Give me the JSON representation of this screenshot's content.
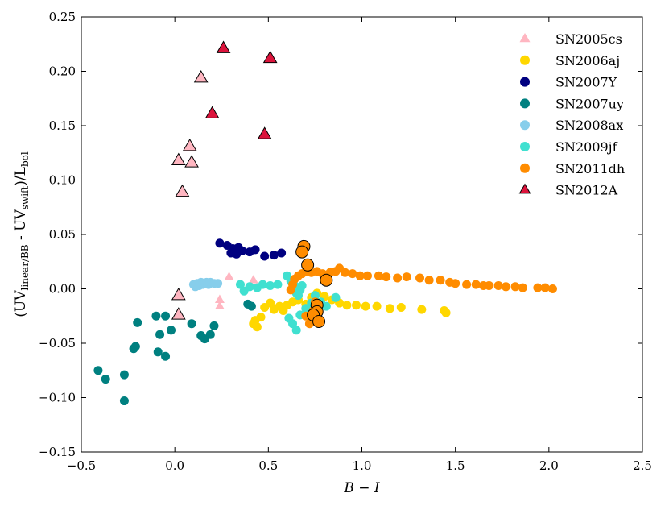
{
  "chart_data": {
    "type": "scatter",
    "title": "",
    "xlabel": "B − I",
    "ylabel": "(UV_linear/BB - UV_swift)/L_bol",
    "ylabel_parts": {
      "open": "(UV",
      "sub1": "linear/BB",
      "mid": " - UV",
      "sub2": "swift",
      "close": ")/L",
      "sub3": "bol"
    },
    "xlim": [
      -0.5,
      2.5
    ],
    "ylim": [
      -0.15,
      0.25
    ],
    "xticks": [
      -0.5,
      0.0,
      0.5,
      1.0,
      1.5,
      2.0,
      2.5
    ],
    "xtick_labels": [
      "−0.5",
      "0.0",
      "0.5",
      "1.0",
      "1.5",
      "2.0",
      "2.5"
    ],
    "yticks": [
      -0.15,
      -0.1,
      -0.05,
      0.0,
      0.05,
      0.1,
      0.15,
      0.2,
      0.25
    ],
    "ytick_labels": [
      "−0.15",
      "−0.10",
      "−0.05",
      "0.00",
      "0.05",
      "0.10",
      "0.15",
      "0.20",
      "0.25"
    ],
    "grid": false,
    "legend_position": "top-right",
    "series": [
      {
        "name": "SN2005cs",
        "marker": "triangle",
        "color": "#ffb6c1",
        "points": [
          [
            0.02,
            0.118
          ],
          [
            0.08,
            0.131
          ],
          [
            0.14,
            0.194
          ],
          [
            0.09,
            0.116
          ],
          [
            0.04,
            0.089
          ],
          [
            0.02,
            -0.006
          ],
          [
            0.02,
            -0.024
          ],
          [
            0.24,
            -0.01
          ],
          [
            0.24,
            -0.016
          ],
          [
            0.29,
            0.011
          ],
          [
            0.42,
            0.008
          ]
        ],
        "large_points": [
          [
            0.02,
            0.118
          ],
          [
            0.08,
            0.131
          ],
          [
            0.14,
            0.194
          ],
          [
            0.09,
            0.116
          ],
          [
            0.04,
            0.089
          ],
          [
            0.02,
            -0.006
          ],
          [
            0.02,
            -0.024
          ]
        ]
      },
      {
        "name": "SN2006aj",
        "marker": "circle",
        "color": "#ffd700",
        "points": [
          [
            0.42,
            -0.032
          ],
          [
            0.43,
            -0.029
          ],
          [
            0.44,
            -0.035
          ],
          [
            0.46,
            -0.026
          ],
          [
            0.48,
            -0.017
          ],
          [
            0.51,
            -0.013
          ],
          [
            0.53,
            -0.019
          ],
          [
            0.56,
            -0.016
          ],
          [
            0.58,
            -0.02
          ],
          [
            0.6,
            -0.015
          ],
          [
            0.63,
            -0.012
          ],
          [
            0.66,
            -0.01
          ],
          [
            0.7,
            -0.014
          ],
          [
            0.73,
            -0.008
          ],
          [
            0.76,
            -0.004
          ],
          [
            0.8,
            -0.007
          ],
          [
            0.84,
            -0.01
          ],
          [
            0.88,
            -0.013
          ],
          [
            0.92,
            -0.015
          ],
          [
            0.97,
            -0.015
          ],
          [
            1.02,
            -0.016
          ],
          [
            1.08,
            -0.016
          ],
          [
            1.15,
            -0.018
          ],
          [
            1.21,
            -0.017
          ],
          [
            1.32,
            -0.019
          ],
          [
            1.44,
            -0.02
          ],
          [
            1.45,
            -0.022
          ]
        ]
      },
      {
        "name": "SN2007Y",
        "marker": "circle",
        "color": "#000080",
        "points": [
          [
            0.24,
            0.042
          ],
          [
            0.28,
            0.04
          ],
          [
            0.31,
            0.037
          ],
          [
            0.34,
            0.038
          ],
          [
            0.36,
            0.035
          ],
          [
            0.3,
            0.033
          ],
          [
            0.33,
            0.032
          ],
          [
            0.4,
            0.034
          ],
          [
            0.43,
            0.036
          ],
          [
            0.48,
            0.03
          ],
          [
            0.53,
            0.031
          ],
          [
            0.57,
            0.033
          ]
        ]
      },
      {
        "name": "SN2007uy",
        "marker": "circle",
        "color": "#008080",
        "points": [
          [
            -0.41,
            -0.075
          ],
          [
            -0.37,
            -0.083
          ],
          [
            -0.27,
            -0.079
          ],
          [
            -0.27,
            -0.103
          ],
          [
            -0.2,
            -0.031
          ],
          [
            -0.21,
            -0.053
          ],
          [
            -0.22,
            -0.055
          ],
          [
            -0.1,
            -0.025
          ],
          [
            -0.08,
            -0.042
          ],
          [
            -0.05,
            -0.025
          ],
          [
            -0.02,
            -0.038
          ],
          [
            -0.09,
            -0.058
          ],
          [
            -0.05,
            -0.062
          ],
          [
            0.09,
            -0.032
          ],
          [
            0.14,
            -0.043
          ],
          [
            0.16,
            -0.046
          ],
          [
            0.19,
            -0.042
          ],
          [
            0.21,
            -0.034
          ],
          [
            0.39,
            -0.014
          ],
          [
            0.41,
            -0.016
          ]
        ]
      },
      {
        "name": "SN2008ax",
        "marker": "circle",
        "color": "#87ceeb",
        "points": [
          [
            0.1,
            0.004
          ],
          [
            0.11,
            0.002
          ],
          [
            0.12,
            0.005
          ],
          [
            0.13,
            0.003
          ],
          [
            0.14,
            0.006
          ],
          [
            0.15,
            0.004
          ],
          [
            0.16,
            0.005
          ],
          [
            0.17,
            0.006
          ],
          [
            0.18,
            0.004
          ],
          [
            0.19,
            0.006
          ],
          [
            0.21,
            0.005
          ],
          [
            0.23,
            0.005
          ]
        ]
      },
      {
        "name": "SN2009jf",
        "marker": "circle",
        "color": "#40e0d0",
        "points": [
          [
            0.35,
            0.004
          ],
          [
            0.37,
            -0.002
          ],
          [
            0.4,
            0.002
          ],
          [
            0.44,
            0.001
          ],
          [
            0.47,
            0.004
          ],
          [
            0.51,
            0.003
          ],
          [
            0.55,
            0.004
          ],
          [
            0.6,
            0.012
          ],
          [
            0.62,
            0.007
          ],
          [
            0.64,
            0.003
          ],
          [
            0.65,
            -0.004
          ],
          [
            0.66,
            -0.006
          ],
          [
            0.67,
            -0.001
          ],
          [
            0.68,
            0.003
          ],
          [
            0.61,
            -0.027
          ],
          [
            0.63,
            -0.032
          ],
          [
            0.65,
            -0.038
          ],
          [
            0.67,
            -0.024
          ],
          [
            0.7,
            -0.018
          ],
          [
            0.73,
            -0.013
          ],
          [
            0.75,
            -0.006
          ],
          [
            0.78,
            -0.012
          ],
          [
            0.81,
            -0.016
          ],
          [
            0.86,
            -0.008
          ]
        ]
      },
      {
        "name": "SN2011dh",
        "marker": "circle",
        "color": "#ff8c00",
        "points": [
          [
            0.62,
            -0.001
          ],
          [
            0.63,
            0.004
          ],
          [
            0.64,
            0.009
          ],
          [
            0.66,
            0.012
          ],
          [
            0.68,
            0.014
          ],
          [
            0.7,
            0.016
          ],
          [
            0.73,
            0.015
          ],
          [
            0.76,
            0.016
          ],
          [
            0.79,
            0.014
          ],
          [
            0.83,
            0.015
          ],
          [
            0.86,
            0.016
          ],
          [
            0.88,
            0.019
          ],
          [
            0.91,
            0.015
          ],
          [
            0.95,
            0.014
          ],
          [
            0.99,
            0.012
          ],
          [
            1.03,
            0.012
          ],
          [
            1.09,
            0.012
          ],
          [
            1.13,
            0.011
          ],
          [
            1.19,
            0.01
          ],
          [
            1.24,
            0.011
          ],
          [
            1.31,
            0.01
          ],
          [
            1.36,
            0.008
          ],
          [
            1.42,
            0.008
          ],
          [
            1.47,
            0.006
          ],
          [
            1.5,
            0.005
          ],
          [
            1.56,
            0.004
          ],
          [
            1.61,
            0.004
          ],
          [
            1.65,
            0.003
          ],
          [
            1.68,
            0.003
          ],
          [
            1.73,
            0.003
          ],
          [
            1.77,
            0.002
          ],
          [
            1.82,
            0.002
          ],
          [
            1.86,
            0.001
          ],
          [
            1.94,
            0.001
          ],
          [
            1.98,
            0.001
          ],
          [
            2.02,
            0.0
          ],
          [
            0.7,
            -0.025
          ],
          [
            0.72,
            -0.032
          ],
          [
            0.74,
            -0.02
          ],
          [
            0.75,
            -0.012
          ]
        ],
        "large_points": [
          [
            0.69,
            0.039
          ],
          [
            0.68,
            0.034
          ],
          [
            0.71,
            0.022
          ],
          [
            0.81,
            0.008
          ],
          [
            0.76,
            -0.015
          ],
          [
            0.76,
            -0.021
          ],
          [
            0.74,
            -0.024
          ],
          [
            0.77,
            -0.03
          ]
        ]
      },
      {
        "name": "SN2012A",
        "marker": "triangle",
        "color": "#dc143c",
        "points": [
          [
            0.26,
            0.221
          ],
          [
            0.51,
            0.212
          ],
          [
            0.2,
            0.161
          ],
          [
            0.48,
            0.142
          ]
        ]
      }
    ]
  }
}
